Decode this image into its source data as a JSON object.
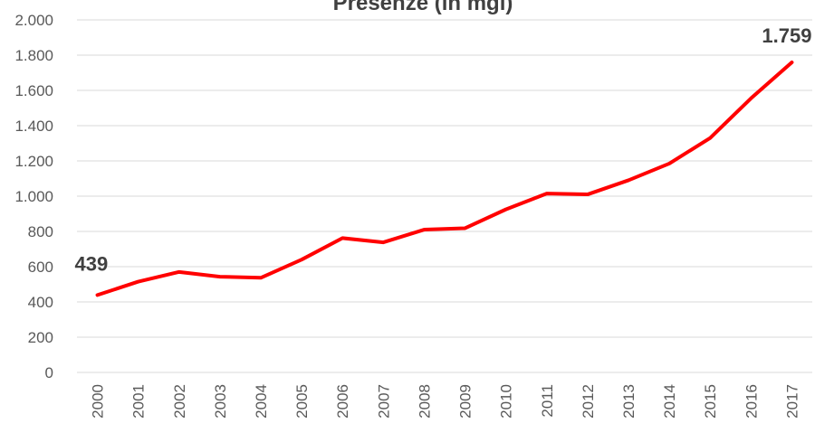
{
  "chart_data": {
    "type": "line",
    "title": "Presenze (in mgl)",
    "categories": [
      "2000",
      "2001",
      "2002",
      "2003",
      "2004",
      "2005",
      "2006",
      "2007",
      "2008",
      "2009",
      "2010",
      "2011",
      "2012",
      "2013",
      "2014",
      "2015",
      "2016",
      "2017"
    ],
    "series": [
      {
        "name": "Presenze",
        "color": "#ff0000",
        "values": [
          439,
          515,
          570,
          543,
          537,
          640,
          762,
          738,
          810,
          818,
          925,
          1015,
          1010,
          1090,
          1185,
          1330,
          1555,
          1759
        ],
        "value_labels": [
          "439",
          null,
          null,
          null,
          null,
          null,
          null,
          null,
          null,
          null,
          null,
          null,
          null,
          null,
          null,
          null,
          null,
          "1.759"
        ]
      }
    ],
    "ylim": [
      0,
      2000
    ],
    "yticks": [
      0,
      200,
      400,
      600,
      800,
      {
        "value": 1000,
        "label": "1.000"
      },
      {
        "value": 1200,
        "label": "1.200"
      },
      {
        "value": 1400,
        "label": "1.400"
      },
      {
        "value": 1600,
        "label": "1.600"
      },
      {
        "value": 1800,
        "label": "1.800"
      },
      {
        "value": 2000,
        "label": "2.000"
      }
    ],
    "grid": true
  }
}
